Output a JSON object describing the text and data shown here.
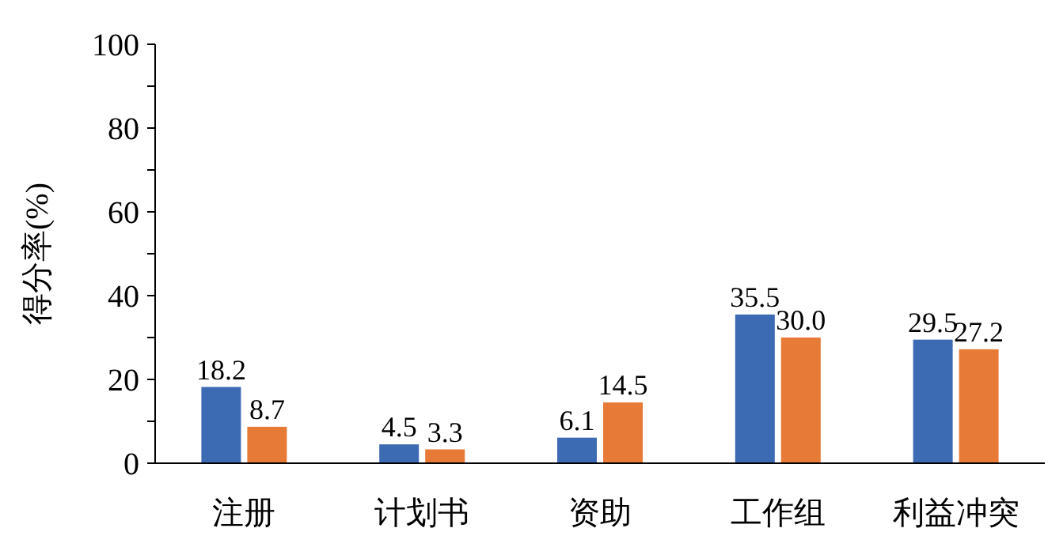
{
  "chart_data": {
    "type": "bar",
    "ylabel": "得分率(%)",
    "categories": [
      "注册",
      "计划书",
      "资助",
      "工作组",
      "利益冲突"
    ],
    "series": [
      {
        "color": "#3c6bb4",
        "values": [
          18.2,
          4.5,
          6.1,
          35.5,
          29.5
        ],
        "value_labels": [
          "18.2",
          "4.5",
          "6.1",
          "35.5",
          "29.5"
        ]
      },
      {
        "color": "#e77a37",
        "values": [
          8.7,
          3.3,
          14.5,
          30.0,
          27.2
        ],
        "value_labels": [
          "8.7",
          "3.3",
          "14.5",
          "30.0",
          "27.2"
        ]
      }
    ],
    "ylim": [
      0,
      100
    ],
    "yticks": [
      0,
      {
        "value": 10,
        "label": null
      },
      20,
      {
        "value": 30,
        "label": null
      },
      40,
      {
        "value": 50,
        "label": null
      },
      60,
      {
        "value": 70,
        "label": null
      },
      80,
      {
        "value": 90,
        "label": null
      },
      100
    ],
    "grid": false
  }
}
